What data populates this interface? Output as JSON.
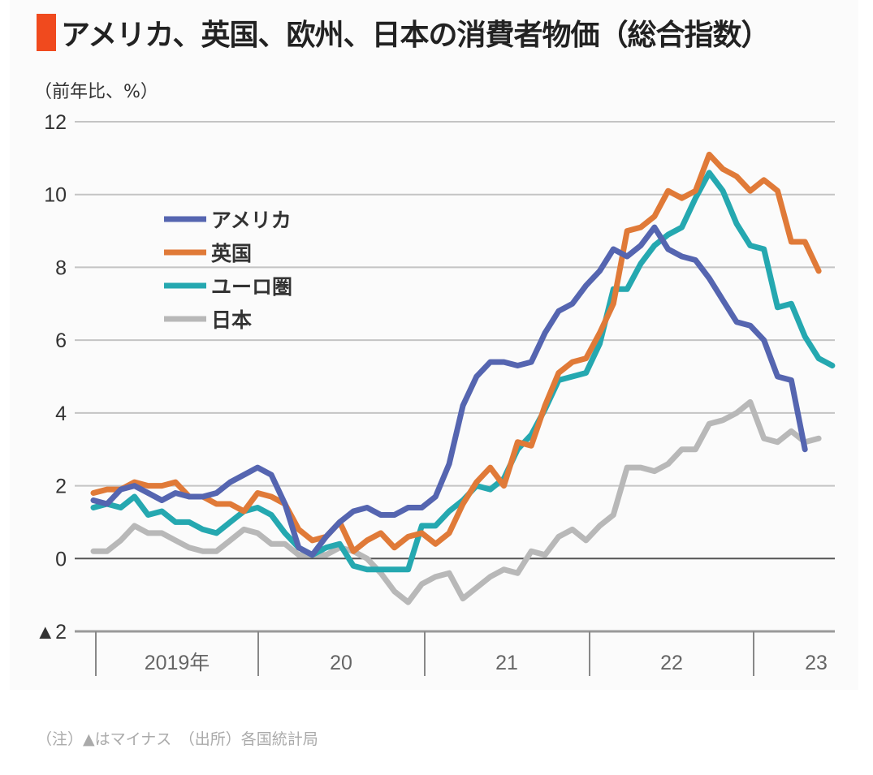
{
  "header": {
    "title": "アメリカ、英国、欧州、日本の消費者物価（総合指数）",
    "accent_color": "#f04a1e"
  },
  "footnote": "（注）▲はマイナス　（出所）各国統計局",
  "chart_data": {
    "type": "line",
    "title": "アメリカ、英国、欧州、日本の消費者物価（総合指数）",
    "ylabel": "（前年比、%）",
    "xlabel": "",
    "ylim": [
      -2,
      12
    ],
    "yticks": [
      12,
      10,
      8,
      6,
      4,
      2,
      0,
      -2
    ],
    "ytick_labels": [
      "12",
      "10",
      "8",
      "6",
      "4",
      "2",
      "0",
      "▲2"
    ],
    "grid": true,
    "x_start": "2019-01",
    "x_frequency": "monthly",
    "year_labels": [
      "2019年",
      "20",
      "21",
      "22",
      "23"
    ],
    "legend_position": "upper-left",
    "series": [
      {
        "name": "アメリカ",
        "color": "#5565b0",
        "values": [
          1.6,
          1.5,
          1.9,
          2.0,
          1.8,
          1.6,
          1.8,
          1.7,
          1.7,
          1.8,
          2.1,
          2.3,
          2.5,
          2.3,
          1.5,
          0.3,
          0.1,
          0.6,
          1.0,
          1.3,
          1.4,
          1.2,
          1.2,
          1.4,
          1.4,
          1.7,
          2.6,
          4.2,
          5.0,
          5.4,
          5.4,
          5.3,
          5.4,
          6.2,
          6.8,
          7.0,
          7.5,
          7.9,
          8.5,
          8.3,
          8.6,
          9.1,
          8.5,
          8.3,
          8.2,
          7.7,
          7.1,
          6.5,
          6.4,
          6.0,
          5.0,
          4.9,
          3.0
        ]
      },
      {
        "name": "英国",
        "color": "#e07a38",
        "values": [
          1.8,
          1.9,
          1.9,
          2.1,
          2.0,
          2.0,
          2.1,
          1.7,
          1.7,
          1.5,
          1.5,
          1.3,
          1.8,
          1.7,
          1.5,
          0.8,
          0.5,
          0.6,
          1.0,
          0.2,
          0.5,
          0.7,
          0.3,
          0.6,
          0.7,
          0.4,
          0.7,
          1.5,
          2.1,
          2.5,
          2.0,
          3.2,
          3.1,
          4.2,
          5.1,
          5.4,
          5.5,
          6.2,
          7.0,
          9.0,
          9.1,
          9.4,
          10.1,
          9.9,
          10.1,
          11.1,
          10.7,
          10.5,
          10.1,
          10.4,
          10.1,
          8.7,
          8.7,
          7.9
        ]
      },
      {
        "name": "ユーロ圏",
        "color": "#25a8b0",
        "values": [
          1.4,
          1.5,
          1.4,
          1.7,
          1.2,
          1.3,
          1.0,
          1.0,
          0.8,
          0.7,
          1.0,
          1.3,
          1.4,
          1.2,
          0.7,
          0.3,
          0.1,
          0.3,
          0.4,
          -0.2,
          -0.3,
          -0.3,
          -0.3,
          -0.3,
          0.9,
          0.9,
          1.3,
          1.6,
          2.0,
          1.9,
          2.2,
          3.0,
          3.4,
          4.1,
          4.9,
          5.0,
          5.1,
          5.9,
          7.4,
          7.4,
          8.1,
          8.6,
          8.9,
          9.1,
          9.9,
          10.6,
          10.1,
          9.2,
          8.6,
          8.5,
          6.9,
          7.0,
          6.1,
          5.5,
          5.3
        ]
      },
      {
        "name": "日本",
        "color": "#b8b8b8",
        "values": [
          0.2,
          0.2,
          0.5,
          0.9,
          0.7,
          0.7,
          0.5,
          0.3,
          0.2,
          0.2,
          0.5,
          0.8,
          0.7,
          0.4,
          0.4,
          0.1,
          0.1,
          0.1,
          0.3,
          0.2,
          0.0,
          -0.4,
          -0.9,
          -1.2,
          -0.7,
          -0.5,
          -0.4,
          -1.1,
          -0.8,
          -0.5,
          -0.3,
          -0.4,
          0.2,
          0.1,
          0.6,
          0.8,
          0.5,
          0.9,
          1.2,
          2.5,
          2.5,
          2.4,
          2.6,
          3.0,
          3.0,
          3.7,
          3.8,
          4.0,
          4.3,
          3.3,
          3.2,
          3.5,
          3.2,
          3.3
        ]
      }
    ]
  }
}
